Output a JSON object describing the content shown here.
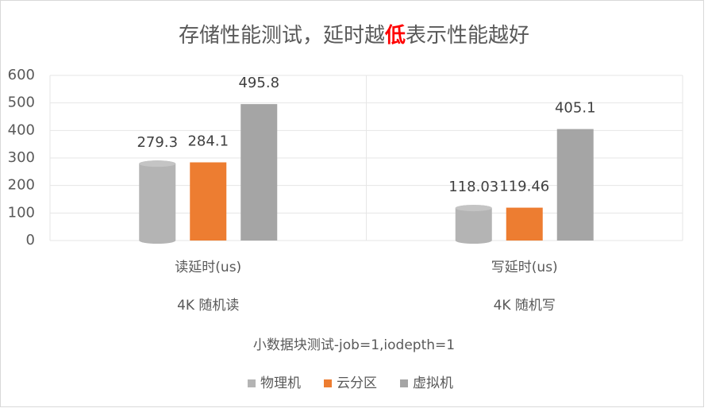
{
  "chart_data": {
    "type": "bar",
    "title_parts": [
      {
        "text": "存储性能测试，延时越",
        "color": "#595959",
        "bold": false
      },
      {
        "text": "低",
        "color": "#ff0000",
        "bold": true
      },
      {
        "text": "表示性能越好",
        "color": "#595959",
        "bold": false
      }
    ],
    "categories": [
      "读延时(us)",
      "写延时(us)"
    ],
    "group_labels": [
      "4K 随机读",
      "4K 随机写"
    ],
    "x_axis_title": "小数据块测试-job=1,iodepth=1",
    "series": [
      {
        "name": "物理机",
        "color": "#b4b4b4",
        "shape": "cylinder",
        "values": [
          279.3,
          118.03
        ]
      },
      {
        "name": "云分区",
        "color": "#ed7d31",
        "shape": "box",
        "values": [
          284.1,
          119.46
        ]
      },
      {
        "name": "虚拟机",
        "color": "#a5a5a5",
        "shape": "box",
        "values": [
          495.8,
          405.1
        ]
      }
    ],
    "ylim": [
      0,
      600
    ],
    "yticks": [
      0,
      100,
      200,
      300,
      400,
      500,
      600
    ],
    "grid": true,
    "legend": "bottom"
  }
}
